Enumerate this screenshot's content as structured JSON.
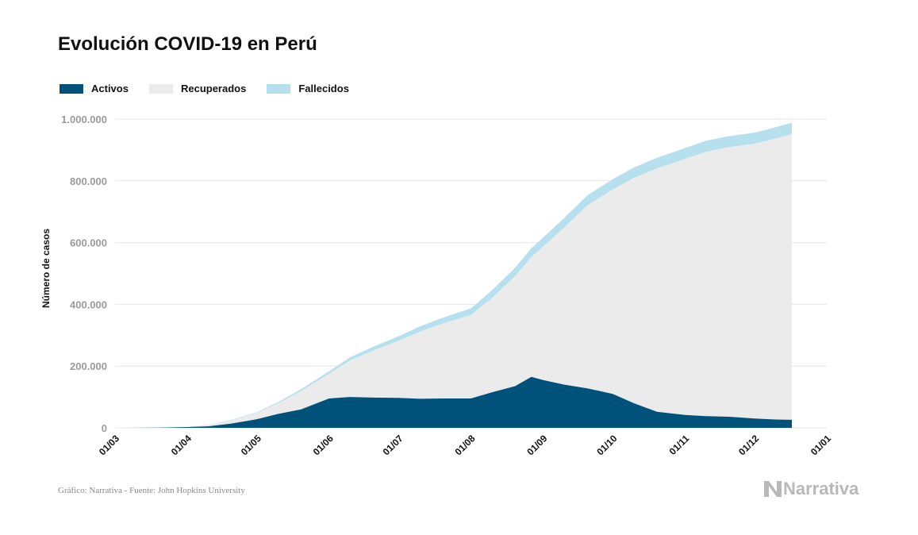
{
  "title": "Evolución COVID-19 en Perú",
  "legend": [
    {
      "label": "Activos",
      "color": "#00527a"
    },
    {
      "label": "Recuperados",
      "color": "#ebebeb"
    },
    {
      "label": "Fallecidos",
      "color": "#b7e0ee"
    }
  ],
  "footer": {
    "source": "Gráfico: Narrativa - Fuente: John Hopkins University",
    "brand": "Narrativa"
  },
  "chart_data": {
    "type": "area",
    "stacked": true,
    "ylabel": "Número de casos",
    "ylim": [
      0,
      1000000
    ],
    "y_ticks": [
      0,
      200000,
      400000,
      600000,
      800000,
      1000000
    ],
    "y_tick_labels": [
      "0",
      "200.000",
      "400.000",
      "600.000",
      "800.000",
      "1.000.000"
    ],
    "x_ticks": [
      "2020-03-01",
      "2020-04-01",
      "2020-05-01",
      "2020-06-01",
      "2020-07-01",
      "2020-08-01",
      "2020-09-01",
      "2020-10-01",
      "2020-11-01",
      "2020-12-01",
      "2021-01-01"
    ],
    "x_tick_labels": [
      "01/03",
      "01/04",
      "01/05",
      "01/06",
      "01/07",
      "01/08",
      "01/09",
      "01/10",
      "01/11",
      "01/12",
      "01/01"
    ],
    "grid": true,
    "legend_position": "top-left",
    "x": [
      "2020-03-06",
      "2020-03-20",
      "2020-04-01",
      "2020-04-10",
      "2020-04-20",
      "2020-05-01",
      "2020-05-10",
      "2020-05-20",
      "2020-06-01",
      "2020-06-10",
      "2020-06-20",
      "2020-07-01",
      "2020-07-10",
      "2020-07-20",
      "2020-08-01",
      "2020-08-10",
      "2020-08-20",
      "2020-08-27",
      "2020-09-01",
      "2020-09-10",
      "2020-09-20",
      "2020-10-01",
      "2020-10-10",
      "2020-10-20",
      "2020-11-01",
      "2020-11-10",
      "2020-11-20",
      "2020-12-01",
      "2020-12-10",
      "2020-12-17"
    ],
    "series": [
      {
        "name": "Activos",
        "values": [
          0,
          400,
          2500,
          5000,
          14000,
          28000,
          45000,
          60000,
          95000,
          100000,
          98000,
          97000,
          94000,
          95000,
          95000,
          115000,
          135000,
          165000,
          155000,
          140000,
          128000,
          110000,
          80000,
          52000,
          42000,
          38000,
          36000,
          30000,
          27000,
          26000
        ]
      },
      {
        "name": "Recuperados",
        "values": [
          0,
          100,
          800,
          4500,
          11500,
          20000,
          34000,
          59000,
          80000,
          118000,
          152000,
          185000,
          217000,
          243000,
          270000,
          305000,
          356000,
          388000,
          432000,
          508000,
          592000,
          662000,
          729000,
          788000,
          829000,
          856000,
          873000,
          890000,
          910000,
          925000
        ]
      },
      {
        "name": "Fallecidos",
        "values": [
          0,
          10,
          100,
          500,
          1200,
          2500,
          4000,
          6000,
          8300,
          10000,
          12500,
          15000,
          17000,
          19000,
          22000,
          25000,
          27500,
          28500,
          29500,
          31000,
          32500,
          33500,
          34000,
          34500,
          35000,
          35500,
          35800,
          36000,
          36500,
          36900
        ]
      }
    ]
  }
}
